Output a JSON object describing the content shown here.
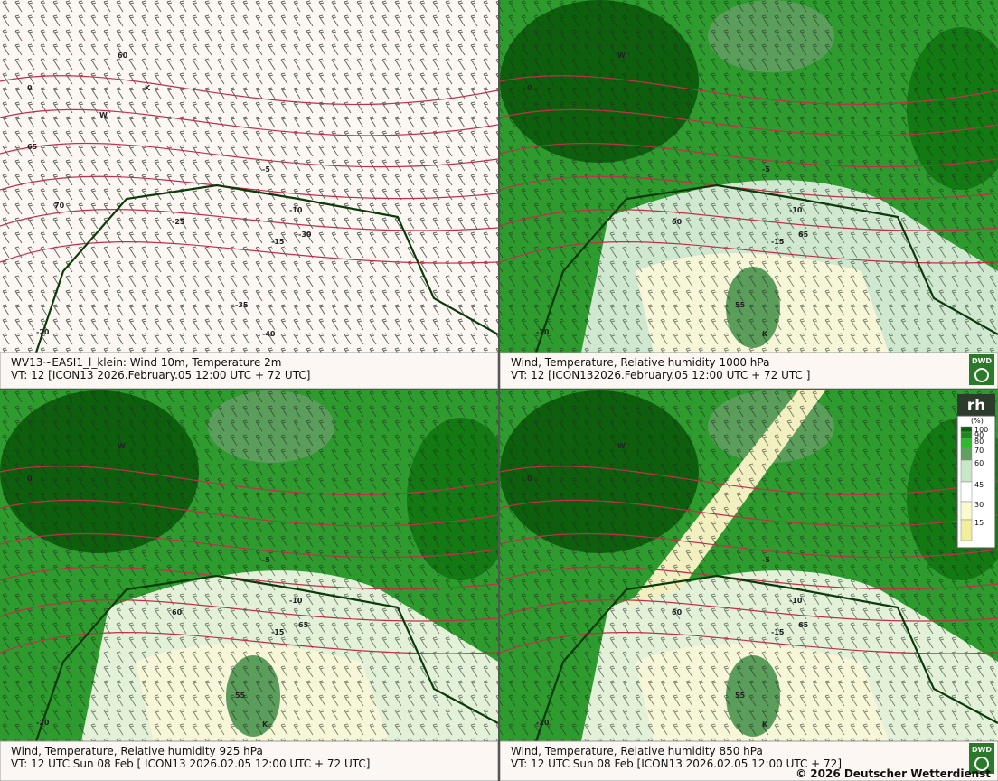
{
  "panels": [
    {
      "line1": "WV13~EASI1_l_klein:  Wind 10m, Temperature   2m",
      "line2": "VT: 12 [ICON13 2026.February.05 12:00 UTC + 72 UTC]",
      "labels": [
        "0",
        "-5",
        "-10",
        "-15",
        "-20",
        "-25",
        "-30",
        "-35",
        "-40",
        "60",
        "65",
        "70",
        "K",
        "W"
      ]
    },
    {
      "line1": "Wind,  Temperature, Relative humidity 1000 hPa",
      "line2": "VT: 12 [ICON132026.February.05 12:00 UTC +  72 UTC ]",
      "labels": [
        "0",
        "-5",
        "-10",
        "-15",
        "-20",
        "60",
        "65",
        "55",
        "K",
        "W"
      ]
    },
    {
      "line1": "Wind, Temperature, Relative humidity 925 hPa",
      "line2": "VT: 12 UTC Sun  08 Feb [ ICON13 2026.02.05 12:00 UTC + 72 UTC]",
      "labels": [
        "0",
        "-5",
        "-10",
        "-15",
        "-20",
        "60",
        "65",
        "55",
        "K",
        "W"
      ]
    },
    {
      "line1": "Wind,  Temperature, Relative humidity 850 hPa",
      "line2": "VT: 12 UTC Sun  08 Feb [ICON13 2026.02.05 12:00 UTC + 72]",
      "labels": [
        "0",
        "-5",
        "-10",
        "-15",
        "-20",
        "60",
        "65",
        "55",
        "K",
        "W"
      ]
    }
  ],
  "legend": {
    "title": "rh",
    "unit": "(%)",
    "levels": [
      100,
      90,
      80,
      70,
      60,
      45,
      30,
      15
    ]
  },
  "logo": "DWD",
  "copyright": "© 2026 Deutscher Wetterdienst"
}
